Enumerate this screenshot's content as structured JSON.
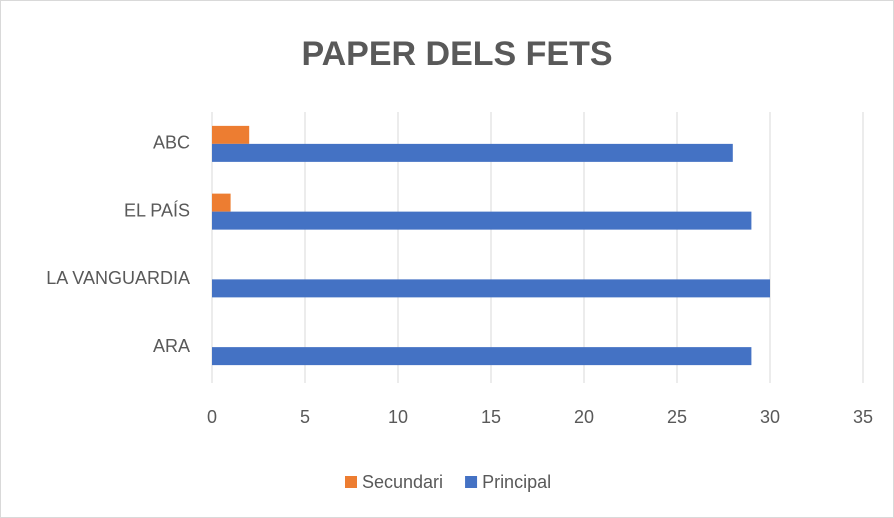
{
  "chart_data": {
    "type": "hbar",
    "title": "PAPER DELS FETS",
    "categories": [
      "ABC",
      "EL PAÍS",
      "LA VANGUARDIA",
      "ARA"
    ],
    "series": [
      {
        "name": "Secundari",
        "color": "#ed7d31",
        "values": [
          2,
          1,
          0,
          0
        ]
      },
      {
        "name": "Principal",
        "color": "#4472c4",
        "values": [
          28,
          29,
          30,
          29
        ]
      }
    ],
    "xlim": [
      0,
      35
    ],
    "xticks": [
      0,
      5,
      10,
      15,
      20,
      25,
      30,
      35
    ],
    "grid": true,
    "legend": "bottom"
  }
}
